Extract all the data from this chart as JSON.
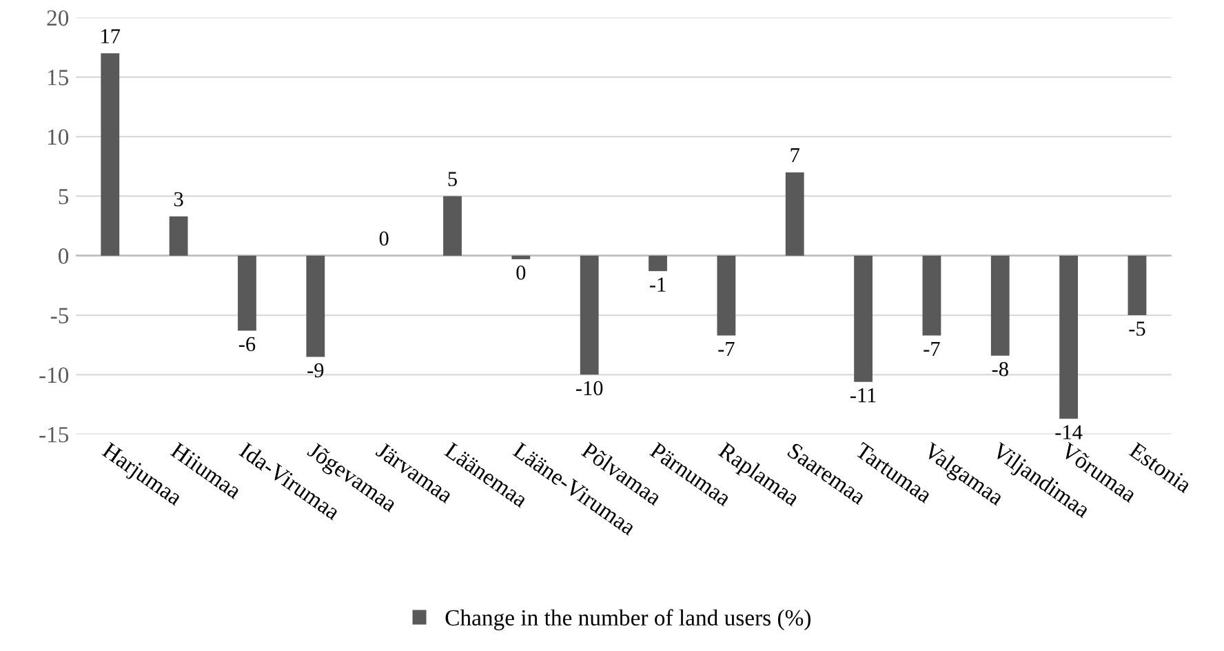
{
  "chart_data": {
    "type": "bar",
    "categories": [
      "Harjumaa",
      "Hiiumaa",
      "Ida-Virumaa",
      "Jõgevamaa",
      "Järvamaa",
      "Läänemaa",
      "Lääne-Virumaa",
      "Põlvamaa",
      "Pärnumaa",
      "Raplamaa",
      "Saaremaa",
      "Tartumaa",
      "Valgamaa",
      "Viljandimaa",
      "Võrumaa",
      "Estonia"
    ],
    "series": [
      {
        "name": "Change in the number of land users (%)",
        "color": "#595959",
        "values": [
          17,
          3.3,
          -6.3,
          -8.5,
          0,
          5,
          -0.3,
          -10,
          -1.3,
          -6.7,
          7,
          -10.6,
          -6.7,
          -8.4,
          -13.7,
          -5
        ],
        "value_labels": [
          "17",
          "3",
          "-6",
          "-9",
          "0",
          "5",
          "0",
          "-10",
          "-1",
          "-7",
          "7",
          "-11",
          "-7",
          "-8",
          "-14",
          "-5"
        ]
      }
    ],
    "ylim": [
      -15,
      20
    ],
    "yticks": [
      -15,
      -10,
      -5,
      0,
      5,
      10,
      15,
      20
    ],
    "grid": "y",
    "legend": "bottom"
  }
}
